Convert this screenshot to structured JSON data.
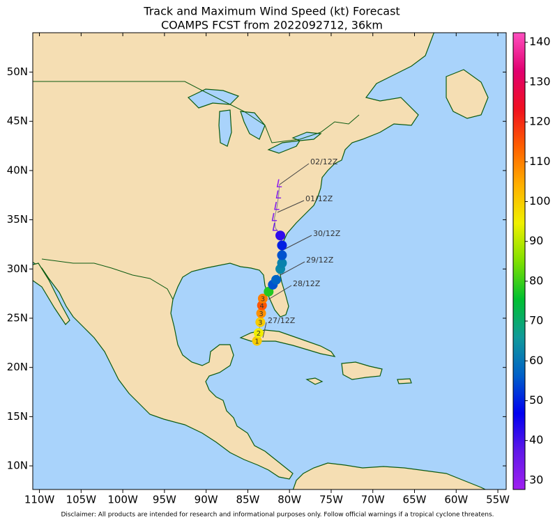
{
  "title": "Track and Maximum Wind Speed (kt) Forecast",
  "subtitle": "COAMPS FCST from 2022092712, 36km",
  "map": {
    "lonlim": [
      -110.8,
      -54
    ],
    "latlim": [
      7.6,
      54
    ],
    "lonticks": [
      {
        "value": -110,
        "label": "110W"
      },
      {
        "value": -105,
        "label": "105W"
      },
      {
        "value": -100,
        "label": "100W"
      },
      {
        "value": -95,
        "label": "95W"
      },
      {
        "value": -90,
        "label": "90W"
      },
      {
        "value": -85,
        "label": "85W"
      },
      {
        "value": -80,
        "label": "80W"
      },
      {
        "value": -75,
        "label": "75W"
      },
      {
        "value": -70,
        "label": "70W"
      },
      {
        "value": -65,
        "label": "65W"
      },
      {
        "value": -60,
        "label": "60W"
      },
      {
        "value": -55,
        "label": "55W"
      }
    ],
    "latticks": [
      {
        "value": 10,
        "label": "10N"
      },
      {
        "value": 15,
        "label": "15N"
      },
      {
        "value": 20,
        "label": "20N"
      },
      {
        "value": 25,
        "label": "25N"
      },
      {
        "value": 30,
        "label": "30N"
      },
      {
        "value": 35,
        "label": "35N"
      },
      {
        "value": 40,
        "label": "40N"
      },
      {
        "value": 45,
        "label": "45N"
      },
      {
        "value": 50,
        "label": "50N"
      }
    ]
  },
  "track": [
    {
      "lon": -83.9,
      "lat": 22.7,
      "wind": 100,
      "label": "1"
    },
    {
      "lon": -83.7,
      "lat": 23.5,
      "wind": 95,
      "label": "2"
    },
    {
      "lon": -83.5,
      "lat": 24.6,
      "wind": 100,
      "label": "3"
    },
    {
      "lon": -83.4,
      "lat": 25.5,
      "wind": 108,
      "label": "3"
    },
    {
      "lon": -83.3,
      "lat": 26.3,
      "wind": 115,
      "label": "4"
    },
    {
      "lon": -83.2,
      "lat": 27.0,
      "wind": 110,
      "label": "3"
    },
    {
      "lon": -82.5,
      "lat": 27.7,
      "wind": 78
    },
    {
      "lon": -82.0,
      "lat": 28.4,
      "wind": 55
    },
    {
      "lon": -81.6,
      "lat": 28.9,
      "wind": 57
    },
    {
      "lon": -81.1,
      "lat": 30.0,
      "wind": 63
    },
    {
      "lon": -80.9,
      "lat": 30.6,
      "wind": 62
    },
    {
      "lon": -80.9,
      "lat": 31.4,
      "wind": 55
    },
    {
      "lon": -80.9,
      "lat": 32.4,
      "wind": 50
    },
    {
      "lon": -81.1,
      "lat": 33.4,
      "wind": 42
    },
    {
      "lon": -81.7,
      "lat": 34.2,
      "wind": 35,
      "label": "L"
    },
    {
      "lon": -81.8,
      "lat": 35.2,
      "wind": 33,
      "label": "L"
    },
    {
      "lon": -81.5,
      "lat": 36.3,
      "wind": 32,
      "label": "L"
    },
    {
      "lon": -81.3,
      "lat": 37.5,
      "wind": 32,
      "label": "L"
    },
    {
      "lon": -81.2,
      "lat": 38.6,
      "wind": 30,
      "label": "L"
    }
  ],
  "time_labels": [
    "27/12Z",
    "28/12Z",
    "29/12Z",
    "30/12Z",
    "01/12Z",
    "02/12Z"
  ],
  "colorbar": {
    "lim": [
      27.7,
      142.4
    ],
    "ticks": [
      30,
      40,
      50,
      60,
      70,
      80,
      90,
      100,
      110,
      120,
      130,
      140
    ],
    "colors": [
      "#a020f0",
      "#6018e8",
      "#0000f0",
      "#0060c8",
      "#109a9a",
      "#00c030",
      "#80e000",
      "#f0f000",
      "#ffb000",
      "#ff6000",
      "#f01020",
      "#e00070",
      "#ff50c0"
    ]
  },
  "disclaimer": "Disclaimer: All products are intended for research and informational purposes only.  Follow official warnings if a tropical cyclone threatens."
}
